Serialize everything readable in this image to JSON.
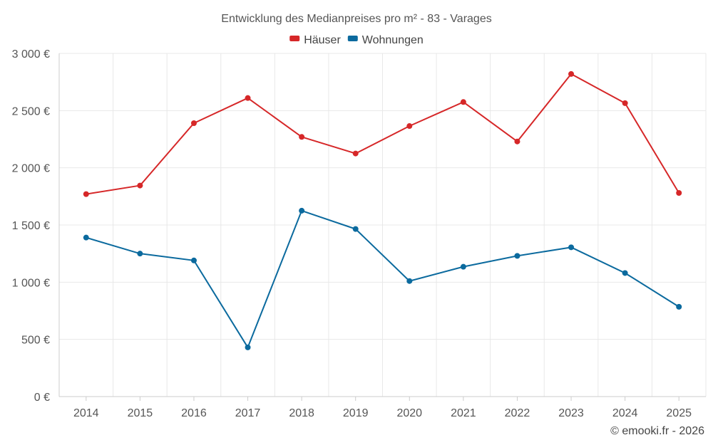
{
  "chart_data": {
    "type": "line",
    "title": "Entwicklung des Medianpreises pro m² - 83 - Varages",
    "categories": [
      "2014",
      "2015",
      "2016",
      "2017",
      "2018",
      "2019",
      "2020",
      "2021",
      "2022",
      "2023",
      "2024",
      "2025"
    ],
    "series": [
      {
        "name": "Häuser",
        "color": "#d62728",
        "values": [
          1770,
          1845,
          2390,
          2610,
          2270,
          2125,
          2365,
          2575,
          2230,
          2820,
          2565,
          1780
        ]
      },
      {
        "name": "Wohnungen",
        "color": "#0b6a9e",
        "values": [
          1390,
          1250,
          1190,
          430,
          1625,
          1465,
          1010,
          1135,
          1230,
          1305,
          1080,
          785
        ]
      }
    ],
    "ylim": [
      0,
      3000
    ],
    "yticks": [
      0,
      500,
      1000,
      1500,
      2000,
      2500,
      3000
    ],
    "ytick_labels": [
      "0 €",
      "500 €",
      "1 000 €",
      "1 500 €",
      "2 000 €",
      "2 500 €",
      "3 000 €"
    ],
    "xlabel": "",
    "ylabel": "",
    "grid": true,
    "legend": "top-center",
    "credit": "© emooki.fr - 2026"
  }
}
